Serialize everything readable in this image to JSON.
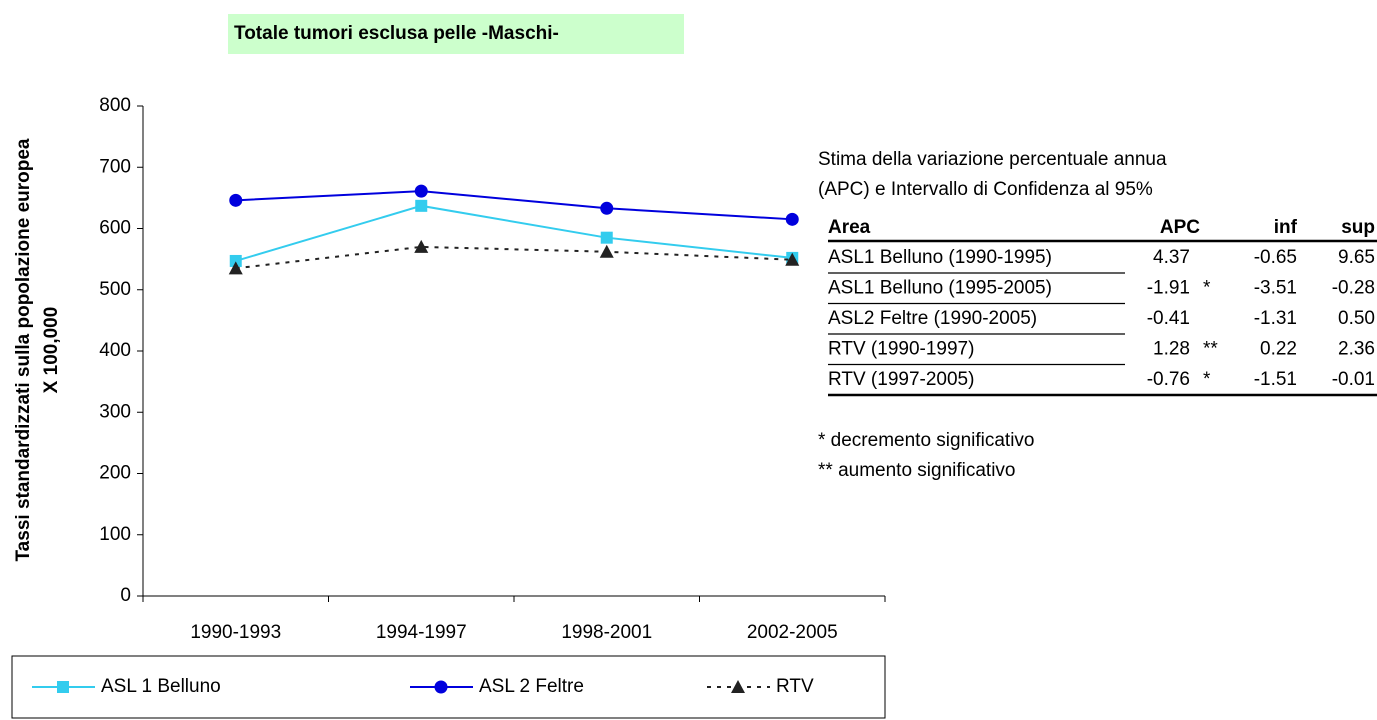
{
  "chart_data": {
    "type": "line",
    "title": "Totale tumori esclusa pelle -Maschi-",
    "y_label": [
      "Tassi standardizzati sulla popolazione europea",
      "X 100,000"
    ],
    "categories": [
      "1990-1993",
      "1994-1997",
      "1998-2001",
      "2002-2005"
    ],
    "series": [
      {
        "name": "ASL 1 Belluno",
        "color": "#33ccee",
        "marker": "square",
        "dash": false,
        "values": [
          547,
          637,
          585,
          552
        ]
      },
      {
        "name": "ASL 2 Feltre",
        "color": "#0000dd",
        "marker": "circle",
        "dash": false,
        "values": [
          646,
          661,
          633,
          615
        ]
      },
      {
        "name": "RTV",
        "color": "#222222",
        "marker": "triangle",
        "dash": true,
        "values": [
          535,
          570,
          562,
          549
        ]
      }
    ],
    "ylim": [
      0,
      800
    ],
    "yticks": [
      0,
      100,
      200,
      300,
      400,
      500,
      600,
      700,
      800
    ],
    "grid": false,
    "legend": "bottom"
  },
  "apc_table": {
    "caption": [
      "Stima della variazione percentuale annua",
      "(APC) e Intervallo di Confidenza al 95%"
    ],
    "columns": [
      "Area",
      "APC",
      "inf",
      "sup"
    ],
    "rows": [
      [
        "ASL1 Belluno (1990-1995)",
        "4.37",
        "",
        "-0.65",
        "9.65"
      ],
      [
        "ASL1 Belluno (1995-2005)",
        "-1.91",
        "*",
        "-3.51",
        "-0.28"
      ],
      [
        "ASL2 Feltre (1990-2005)",
        "-0.41",
        "",
        "-1.31",
        "0.50"
      ],
      [
        "RTV (1990-1997)",
        "1.28",
        "**",
        "0.22",
        "2.36"
      ],
      [
        "RTV (1997-2005)",
        "-0.76",
        "*",
        "-1.51",
        "-0.01"
      ]
    ],
    "notes": [
      "* decremento significativo",
      "** aumento significativo"
    ]
  }
}
